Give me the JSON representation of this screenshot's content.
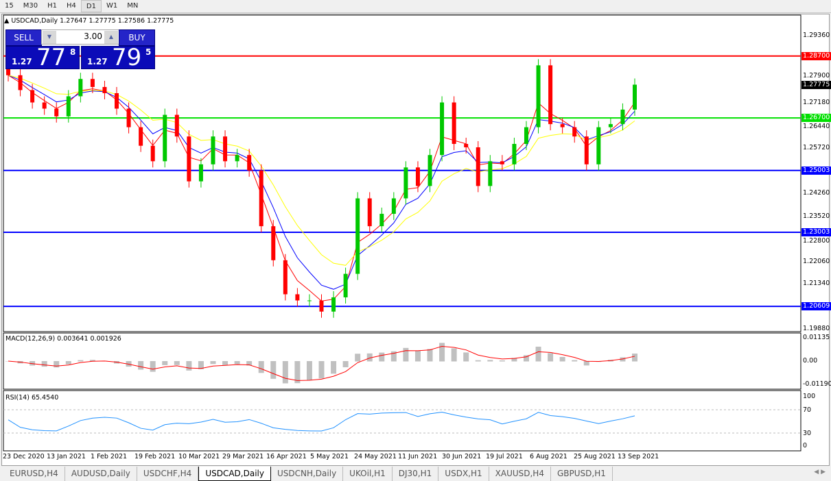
{
  "timeframes": [
    {
      "label": "15",
      "active": false
    },
    {
      "label": "M30",
      "active": false
    },
    {
      "label": "H1",
      "active": false
    },
    {
      "label": "H4",
      "active": false
    },
    {
      "label": "D1",
      "active": true
    },
    {
      "label": "W1",
      "active": false
    },
    {
      "label": "MN",
      "active": false
    }
  ],
  "chart": {
    "title": "USDCAD,Daily  1.27647 1.27775 1.27586 1.27775"
  },
  "trade": {
    "sell_label": "SELL",
    "buy_label": "BUY",
    "lot": "3.00",
    "sell_small": "1.27",
    "sell_big": "77",
    "sell_pip": "8",
    "buy_small": "1.27",
    "buy_big": "79",
    "buy_pip": "5"
  },
  "price_axis": [
    "1.29360",
    "1.27900",
    "1.27180",
    "1.26440",
    "1.25720",
    "1.24260",
    "1.23520",
    "1.22800",
    "1.22060",
    "1.21340",
    "1.19880"
  ],
  "levels": [
    {
      "price": 1.287,
      "label": "1.28700",
      "color": "#ff0000"
    },
    {
      "price": 1.267,
      "label": "1.26700",
      "color": "#00e000"
    },
    {
      "price": 1.25003,
      "label": "1.25003",
      "color": "#0000ff"
    },
    {
      "price": 1.23003,
      "label": "1.23003",
      "color": "#0000ff"
    },
    {
      "price": 1.20609,
      "label": "1.20609",
      "color": "#0000ff"
    }
  ],
  "current_price": {
    "label": "1.27775",
    "value": 1.27775
  },
  "macd": {
    "label": "MACD(12,26,9) 0.003641 0.001926",
    "axis": [
      "0.01135",
      "0.00",
      "-0.011904"
    ]
  },
  "rsi": {
    "label": "RSI(14) 65.4540",
    "axis": [
      "100",
      "70",
      "30",
      "0"
    ]
  },
  "dates": [
    "23 Dec 2020",
    "13 Jan 2021",
    "1 Feb 2021",
    "19 Feb 2021",
    "10 Mar 2021",
    "29 Mar 2021",
    "16 Apr 2021",
    "5 May 2021",
    "24 May 2021",
    "11 Jun 2021",
    "30 Jun 2021",
    "19 Jul 2021",
    "6 Aug 2021",
    "25 Aug 2021",
    "13 Sep 2021"
  ],
  "tabs": [
    {
      "label": "EURUSD,H4",
      "active": false
    },
    {
      "label": "AUDUSD,Daily",
      "active": false
    },
    {
      "label": "USDCHF,H4",
      "active": false
    },
    {
      "label": "USDCAD,Daily",
      "active": true
    },
    {
      "label": "USDCNH,Daily",
      "active": false
    },
    {
      "label": "UKOil,H1",
      "active": false
    },
    {
      "label": "DJ30,H1",
      "active": false
    },
    {
      "label": "USDX,H1",
      "active": false
    },
    {
      "label": "XAUUSD,H4",
      "active": false
    },
    {
      "label": "GBPUSD,H1",
      "active": false
    }
  ],
  "colors": {
    "bull": "#00c800",
    "bear": "#ff0000",
    "ma_fast": "#ff0000",
    "ma_mid": "#0000ff",
    "ma_slow": "#ffff00",
    "rsi": "#1e90ff",
    "macd_hist": "#c0c0c0",
    "macd_signal": "#ff0000"
  },
  "chart_data": {
    "type": "candlestick",
    "symbol": "USDCAD",
    "timeframe": "Daily",
    "ylim": [
      1.1988,
      1.2936
    ],
    "closes": [
      1.2808,
      1.276,
      1.272,
      1.27,
      1.2675,
      1.274,
      1.2796,
      1.277,
      1.275,
      1.27,
      1.264,
      1.258,
      1.253,
      1.268,
      1.261,
      1.2465,
      1.252,
      1.261,
      1.253,
      1.255,
      1.25,
      1.232,
      1.221,
      1.21,
      1.208,
      1.208,
      1.2044,
      1.209,
      1.2166,
      1.241,
      1.232,
      1.236,
      1.241,
      1.251,
      1.245,
      1.255,
      1.272,
      1.2586,
      1.2575,
      1.245,
      1.253,
      1.252,
      1.2586,
      1.264,
      1.284,
      1.265,
      1.264,
      1.261,
      1.252,
      1.264,
      1.265,
      1.2697,
      1.27775
    ]
  }
}
